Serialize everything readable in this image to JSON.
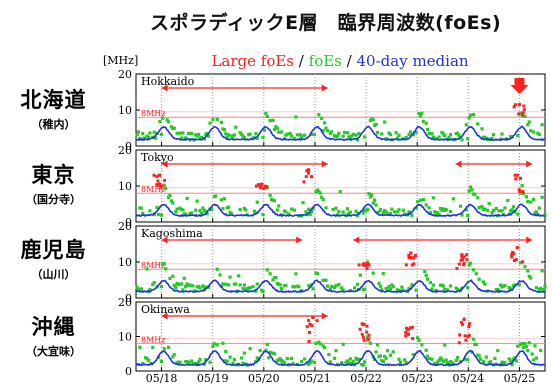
{
  "title": "スポラディックE層　臨界周波数(foEs)",
  "legend": {
    "unit": "[MHz]",
    "items": [
      {
        "label": "Large foEs",
        "color": "#ff2020"
      },
      {
        "label": "foEs",
        "color": "#22cc22"
      },
      {
        "label": "40-day median",
        "color": "#2233dd"
      }
    ],
    "separator": "/"
  },
  "colors": {
    "large": "#ff2020",
    "foes": "#22cc22",
    "median": "#2233dd",
    "threshold": "#ff8080",
    "arrow": "#ff2020"
  },
  "chart_data": {
    "type": "scatter",
    "unit": "MHz",
    "x_tick_labels": [
      "05/18",
      "05/19",
      "05/20",
      "05/21",
      "05/22",
      "05/23",
      "05/24",
      "05/25"
    ],
    "xlim": [
      "05/17 12:00",
      "05/25 12:00"
    ],
    "ylim": [
      0,
      20
    ],
    "y_ticks": [
      0,
      10,
      20
    ],
    "threshold": {
      "value": 8,
      "label": "8MHz"
    },
    "panels": [
      {
        "panel": "Hokkaido",
        "station": "北海道",
        "station_sub": "（稚内）",
        "arrows": [
          [
            "05/18 00:00",
            "05/21 06:00"
          ]
        ],
        "highlight_marker": "05/25 00:00",
        "median_peak": 5.5,
        "daily_peak_foEs": [
          8.5,
          9.0,
          9.5,
          9.5,
          8.5,
          9.0,
          9.5,
          11.5
        ],
        "large_foEs_events": [
          [
            "05/25 00:00",
            11.5
          ]
        ]
      },
      {
        "panel": "Tokyo",
        "station": "東京",
        "station_sub": "（国分寺）",
        "arrows": [
          [
            "05/18 00:00",
            "05/21 06:00"
          ],
          [
            "05/23 18:00",
            "05/25 06:00"
          ]
        ],
        "median_peak": 5.0,
        "daily_peak_foEs": [
          13.0,
          8.0,
          10.5,
          14.5,
          7.5,
          7.0,
          10.5,
          13.0
        ],
        "large_foEs_events": [
          [
            "05/17 23:00",
            13.0
          ],
          [
            "05/19 23:00",
            10.5
          ],
          [
            "05/20 21:00",
            14.5
          ],
          [
            "05/24 23:00",
            13.0
          ]
        ]
      },
      {
        "panel": "Kagoshima",
        "station": "鹿児島",
        "station_sub": "（山川）",
        "arrows": [
          [
            "05/18 00:00",
            "05/20 18:00"
          ],
          [
            "05/21 18:00",
            "05/25 06:00"
          ]
        ],
        "median_peak": 5.0,
        "daily_peak_foEs": [
          9.0,
          8.5,
          8.5,
          8.0,
          9.5,
          12.5,
          12.0,
          14.0
        ],
        "large_foEs_events": [
          [
            "05/21 23:00",
            9.5
          ],
          [
            "05/22 21:00",
            12.5
          ],
          [
            "05/23 21:00",
            12.0
          ],
          [
            "05/24 23:00",
            14.0
          ]
        ]
      },
      {
        "panel": "Okinawa",
        "station": "沖縄",
        "station_sub": "（大宜味）",
        "arrows": [
          [
            "05/18 00:00",
            "05/21 06:00"
          ]
        ],
        "median_peak": 6.0,
        "daily_peak_foEs": [
          7.5,
          7.5,
          7.5,
          15.5,
          13.5,
          12.5,
          15.0,
          8.0
        ],
        "large_foEs_events": [
          [
            "05/20 23:00",
            15.5
          ],
          [
            "05/21 23:00",
            13.5
          ],
          [
            "05/22 21:00",
            12.5
          ],
          [
            "05/23 22:00",
            15.0
          ]
        ]
      }
    ]
  }
}
